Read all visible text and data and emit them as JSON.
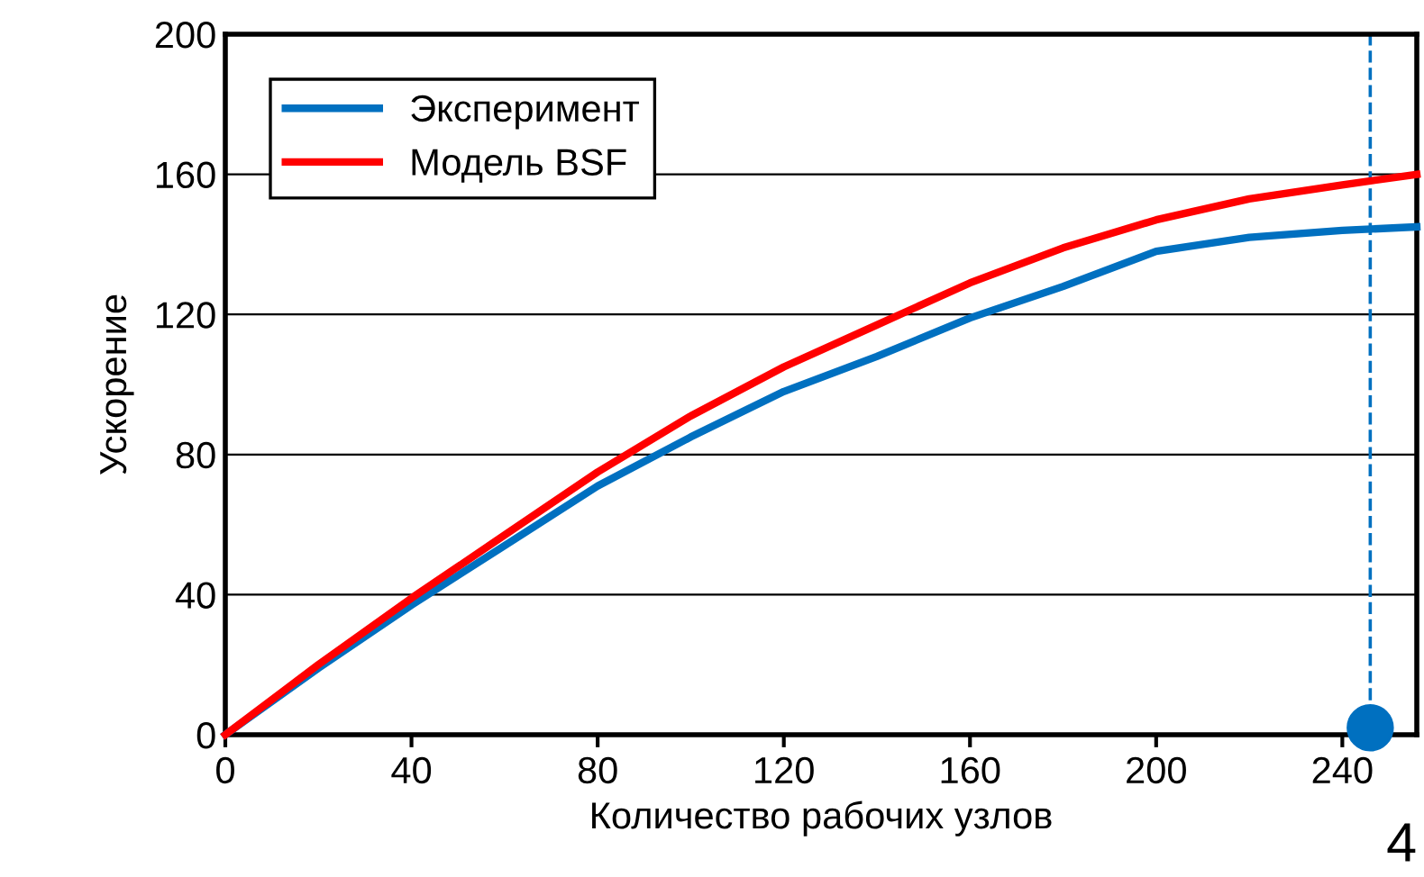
{
  "chart_data": {
    "type": "line",
    "xlabel": "Количество рабочих узлов",
    "ylabel": "Ускорение",
    "x": [
      0,
      20,
      40,
      60,
      80,
      100,
      120,
      140,
      160,
      180,
      200,
      220,
      240,
      256
    ],
    "series": [
      {
        "name": "Эксперимент",
        "color": "#0070c0",
        "values": [
          0,
          19,
          37,
          54,
          71,
          85,
          98,
          108,
          119,
          128,
          138,
          142,
          144,
          145
        ]
      },
      {
        "name": "Модель BSF",
        "color": "#ff0000",
        "values": [
          0,
          20,
          39,
          57,
          75,
          91,
          105,
          117,
          129,
          139,
          147,
          153,
          157,
          160
        ]
      },
      {
        "type": "scatter",
        "color": "#0070c0",
        "x": [
          246
        ],
        "values": [
          2
        ],
        "marker": "circle"
      }
    ],
    "xlim": [
      0,
      256
    ],
    "ylim": [
      0,
      200
    ],
    "xticks": [
      0,
      40,
      80,
      120,
      160,
      200,
      240
    ],
    "yticks": [
      0,
      40,
      80,
      120,
      160,
      200
    ],
    "ref_lines": [
      {
        "axis": "x",
        "value": 246,
        "color": "#0070c0",
        "line_style": "dashed"
      }
    ],
    "grid": "y",
    "legend": "top left",
    "marker": "none",
    "line_style": "solid",
    "annotations": [
      "4"
    ]
  }
}
